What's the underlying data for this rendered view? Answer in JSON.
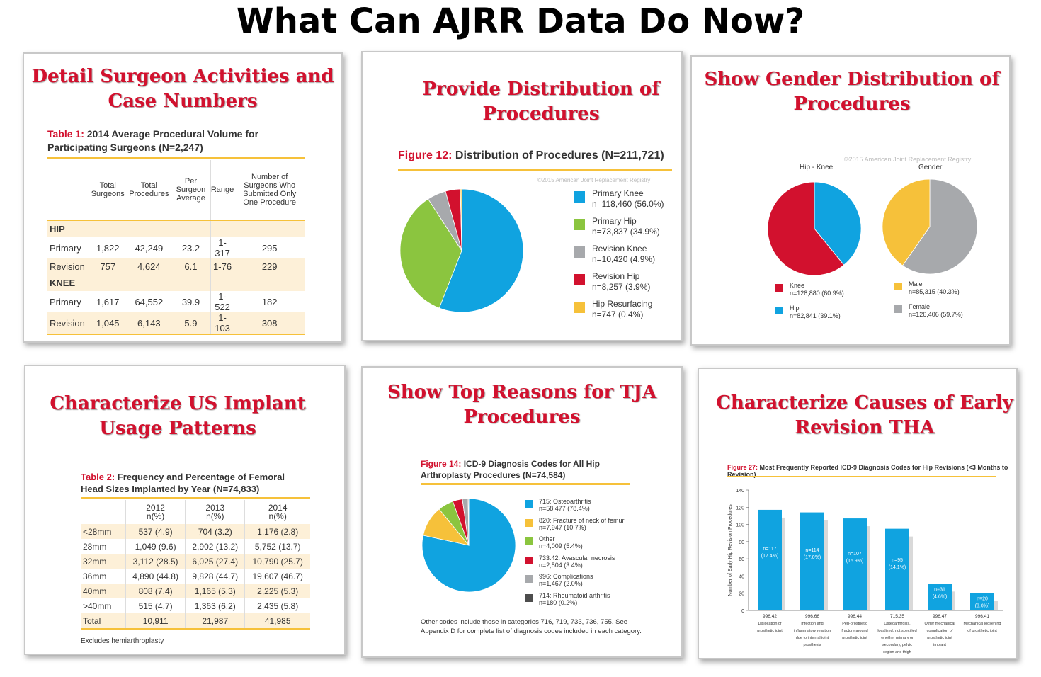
{
  "main_title": "What Can AJRR Data Do Now?",
  "colors": {
    "title_red": "#d2112e",
    "blue": "#10a3e0",
    "green": "#8bc53f",
    "gray": "#a7a9ac",
    "red": "#d2112e",
    "yellow": "#f6c13a",
    "dark": "#4d4d4d",
    "bar_shadow": "#d9d9d9"
  },
  "panels": {
    "p1": {
      "title_l1": "Detail Surgeon Activities and",
      "title_l2": "Case Numbers",
      "cap_label": "Table 1:",
      "cap_l1": "2014 Average Procedural Volume for",
      "cap_l2": "Participating Surgeons (N=2,247)",
      "headers": [
        "",
        "Total Surgeons",
        "Total Procedures",
        "Per Surgeon Average",
        "Range",
        "Number of Surgeons Who Submitted Only One Procedure"
      ],
      "rows": [
        {
          "section": "HIP"
        },
        {
          "cells": [
            "Primary",
            "1,822",
            "42,249",
            "23.2",
            "1-317",
            "295"
          ]
        },
        {
          "cells": [
            "Revision",
            "757",
            "4,624",
            "6.1",
            "1-76",
            "229"
          ]
        },
        {
          "section": "KNEE"
        },
        {
          "cells": [
            "Primary",
            "1,617",
            "64,552",
            "39.9",
            "1-522",
            "182"
          ]
        },
        {
          "cells": [
            "Revision",
            "1,045",
            "6,143",
            "5.9",
            "1-103",
            "308"
          ]
        }
      ]
    },
    "p2": {
      "title_l1": "Provide Distribution of",
      "title_l2": "Procedures",
      "cap_label": "Figure 12:",
      "cap_text": "Distribution of Procedures (N=211,721)",
      "watermark": "©2015 American Joint Replacement Registry"
    },
    "p3": {
      "title_l1": "Show Gender Distribution of",
      "title_l2": "Procedures",
      "watermark": "©2015 American Joint Replacement Registry"
    },
    "p4": {
      "title_l1": "Characterize US Implant",
      "title_l2": "Usage Patterns",
      "cap_label": "Table 2:",
      "cap_l1": "Frequency and Percentage of Femoral",
      "cap_l2": "Head Sizes Implanted by Year (N=74,833)",
      "headers": [
        [
          "",
          ""
        ],
        [
          "2012",
          "n(%)"
        ],
        [
          "2013",
          "n(%)"
        ],
        [
          "2014",
          "n(%)"
        ]
      ],
      "rows": [
        [
          "<28mm",
          "537 (4.9)",
          "704 (3.2)",
          "1,176 (2.8)"
        ],
        [
          "28mm",
          "1,049 (9.6)",
          "2,902 (13.2)",
          "5,752 (13.7)"
        ],
        [
          "32mm",
          "3,112 (28.5)",
          "6,025 (27.4)",
          "10,790 (25.7)"
        ],
        [
          "36mm",
          "4,890 (44.8)",
          "9,828 (44.7)",
          "19,607 (46.7)"
        ],
        [
          "40mm",
          "808 (7.4)",
          "1,165 (5.3)",
          "2,225 (5.3)"
        ],
        [
          ">40mm",
          "515 (4.7)",
          "1,363 (6.2)",
          "2,435 (5.8)"
        ],
        [
          "Total",
          "10,911",
          "21,987",
          "41,985"
        ]
      ],
      "footnote": "Excludes hemiarthroplasty"
    },
    "p5": {
      "title_l1": "Show Top Reasons for TJA",
      "title_l2": "Procedures",
      "cap_label": "Figure 14:",
      "cap_l1": "ICD-9 Diagnosis Codes for All Hip",
      "cap_l2": "Arthroplasty Procedures (N=74,584)",
      "note_l1": "Other codes include those in categories 716, 719, 733, 736, 755. See",
      "note_l2": "Appendix D for complete list of diagnosis codes included in each category."
    },
    "p6": {
      "title_l1": "Characterize Causes of Early",
      "title_l2": "Revision THA",
      "cap_label": "Figure 27:",
      "cap_text": "Most Frequently Reported ICD-9 Diagnosis Codes for Hip Revisions (<3 Months to Revision)"
    }
  },
  "chart_data": [
    {
      "type": "pie",
      "id": "fig12",
      "title": "Distribution of Procedures (N=211,721)",
      "slices": [
        {
          "label": "Primary Knee",
          "detail": "n=118,460 (56.0%)",
          "value": 118460,
          "color": "#10a3e0"
        },
        {
          "label": "Primary Hip",
          "detail": "n=73,837 (34.9%)",
          "value": 73837,
          "color": "#8bc53f"
        },
        {
          "label": "Revision Knee",
          "detail": "n=10,420 (4.9%)",
          "value": 10420,
          "color": "#a7a9ac"
        },
        {
          "label": "Revision Hip",
          "detail": "n=8,257 (3.9%)",
          "value": 8257,
          "color": "#d2112e"
        },
        {
          "label": "Hip Resurfacing",
          "detail": "n=747 (0.4%)",
          "value": 747,
          "color": "#f6c13a"
        }
      ]
    },
    {
      "type": "pie",
      "id": "hipknee",
      "title": "Hip - Knee",
      "slices": [
        {
          "label": "Hip",
          "detail": "n=82,841 (39.1%)",
          "value": 82841,
          "color": "#10a3e0"
        },
        {
          "label": "Knee",
          "detail": "n=128,880 (60.9%)",
          "value": 128880,
          "color": "#d2112e"
        }
      ]
    },
    {
      "type": "pie",
      "id": "gender",
      "title": "Gender",
      "slices": [
        {
          "label": "Female",
          "detail": "n=126,406 (59.7%)",
          "value": 126406,
          "color": "#a7a9ac"
        },
        {
          "label": "Male",
          "detail": "n=85,315 (40.3%)",
          "value": 85315,
          "color": "#f6c13a"
        }
      ]
    },
    {
      "type": "pie",
      "id": "fig14",
      "title": "ICD-9 Diagnosis Codes for All Hip Arthroplasty Procedures (N=74,584)",
      "slices": [
        {
          "label": "715: Osteoarthritis",
          "detail": "n=58,477 (78.4%)",
          "value": 58477,
          "color": "#10a3e0"
        },
        {
          "label": "820: Fracture of neck of femur",
          "detail": "n=7,947 (10.7%)",
          "value": 7947,
          "color": "#f6c13a"
        },
        {
          "label": "Other",
          "detail": "n=4,009 (5.4%)",
          "value": 4009,
          "color": "#8bc53f"
        },
        {
          "label": "733.42: Avascular necrosis",
          "detail": "n=2,504 (3.4%)",
          "value": 2504,
          "color": "#d2112e"
        },
        {
          "label": "996: Complications",
          "detail": "n=1,467 (2.0%)",
          "value": 1467,
          "color": "#a7a9ac"
        },
        {
          "label": "714: Rheumatoid arthritis",
          "detail": "n=180 (0.2%)",
          "value": 180,
          "color": "#4d4d4d"
        }
      ]
    },
    {
      "type": "bar",
      "id": "fig27",
      "title": "Most Frequently Reported ICD-9 Diagnosis Codes for Hip Revisions (<3 Months to Revision)",
      "ylabel": "Number of Early Hip Revision Procedures",
      "ylim": [
        0,
        140
      ],
      "yticks": [
        0,
        20,
        40,
        60,
        80,
        100,
        120,
        140
      ],
      "categories": [
        [
          "996.42",
          "Dislocation of",
          "prosthetic joint"
        ],
        [
          "996.66",
          "Infection and",
          "inflammatory reaction",
          "due to internal joint",
          "prosthesis"
        ],
        [
          "996.44",
          "Peri-prosthetic",
          "fracture around",
          "prosthetic joint"
        ],
        [
          "715.35",
          "Osteoarthrosis,",
          "localized, not specified",
          "whether primary or",
          "secondary, pelvic",
          "region and thigh"
        ],
        [
          "996.47",
          "Other mechanical",
          "complication of",
          "prosthetic joint",
          "implant"
        ],
        [
          "996.41",
          "Mechanical loosening",
          "of prosthetic joint"
        ]
      ],
      "values": [
        117,
        114,
        107,
        95,
        31,
        20
      ],
      "bar_labels": [
        [
          "n=117",
          "(17.4%)"
        ],
        [
          "n=114",
          "(17.0%)"
        ],
        [
          "n=107",
          "(15.9%)"
        ],
        [
          "n=95",
          "(14.1%)"
        ],
        [
          "n=31",
          "(4.6%)"
        ],
        [
          "n=20",
          "(3.0%)"
        ]
      ]
    }
  ]
}
